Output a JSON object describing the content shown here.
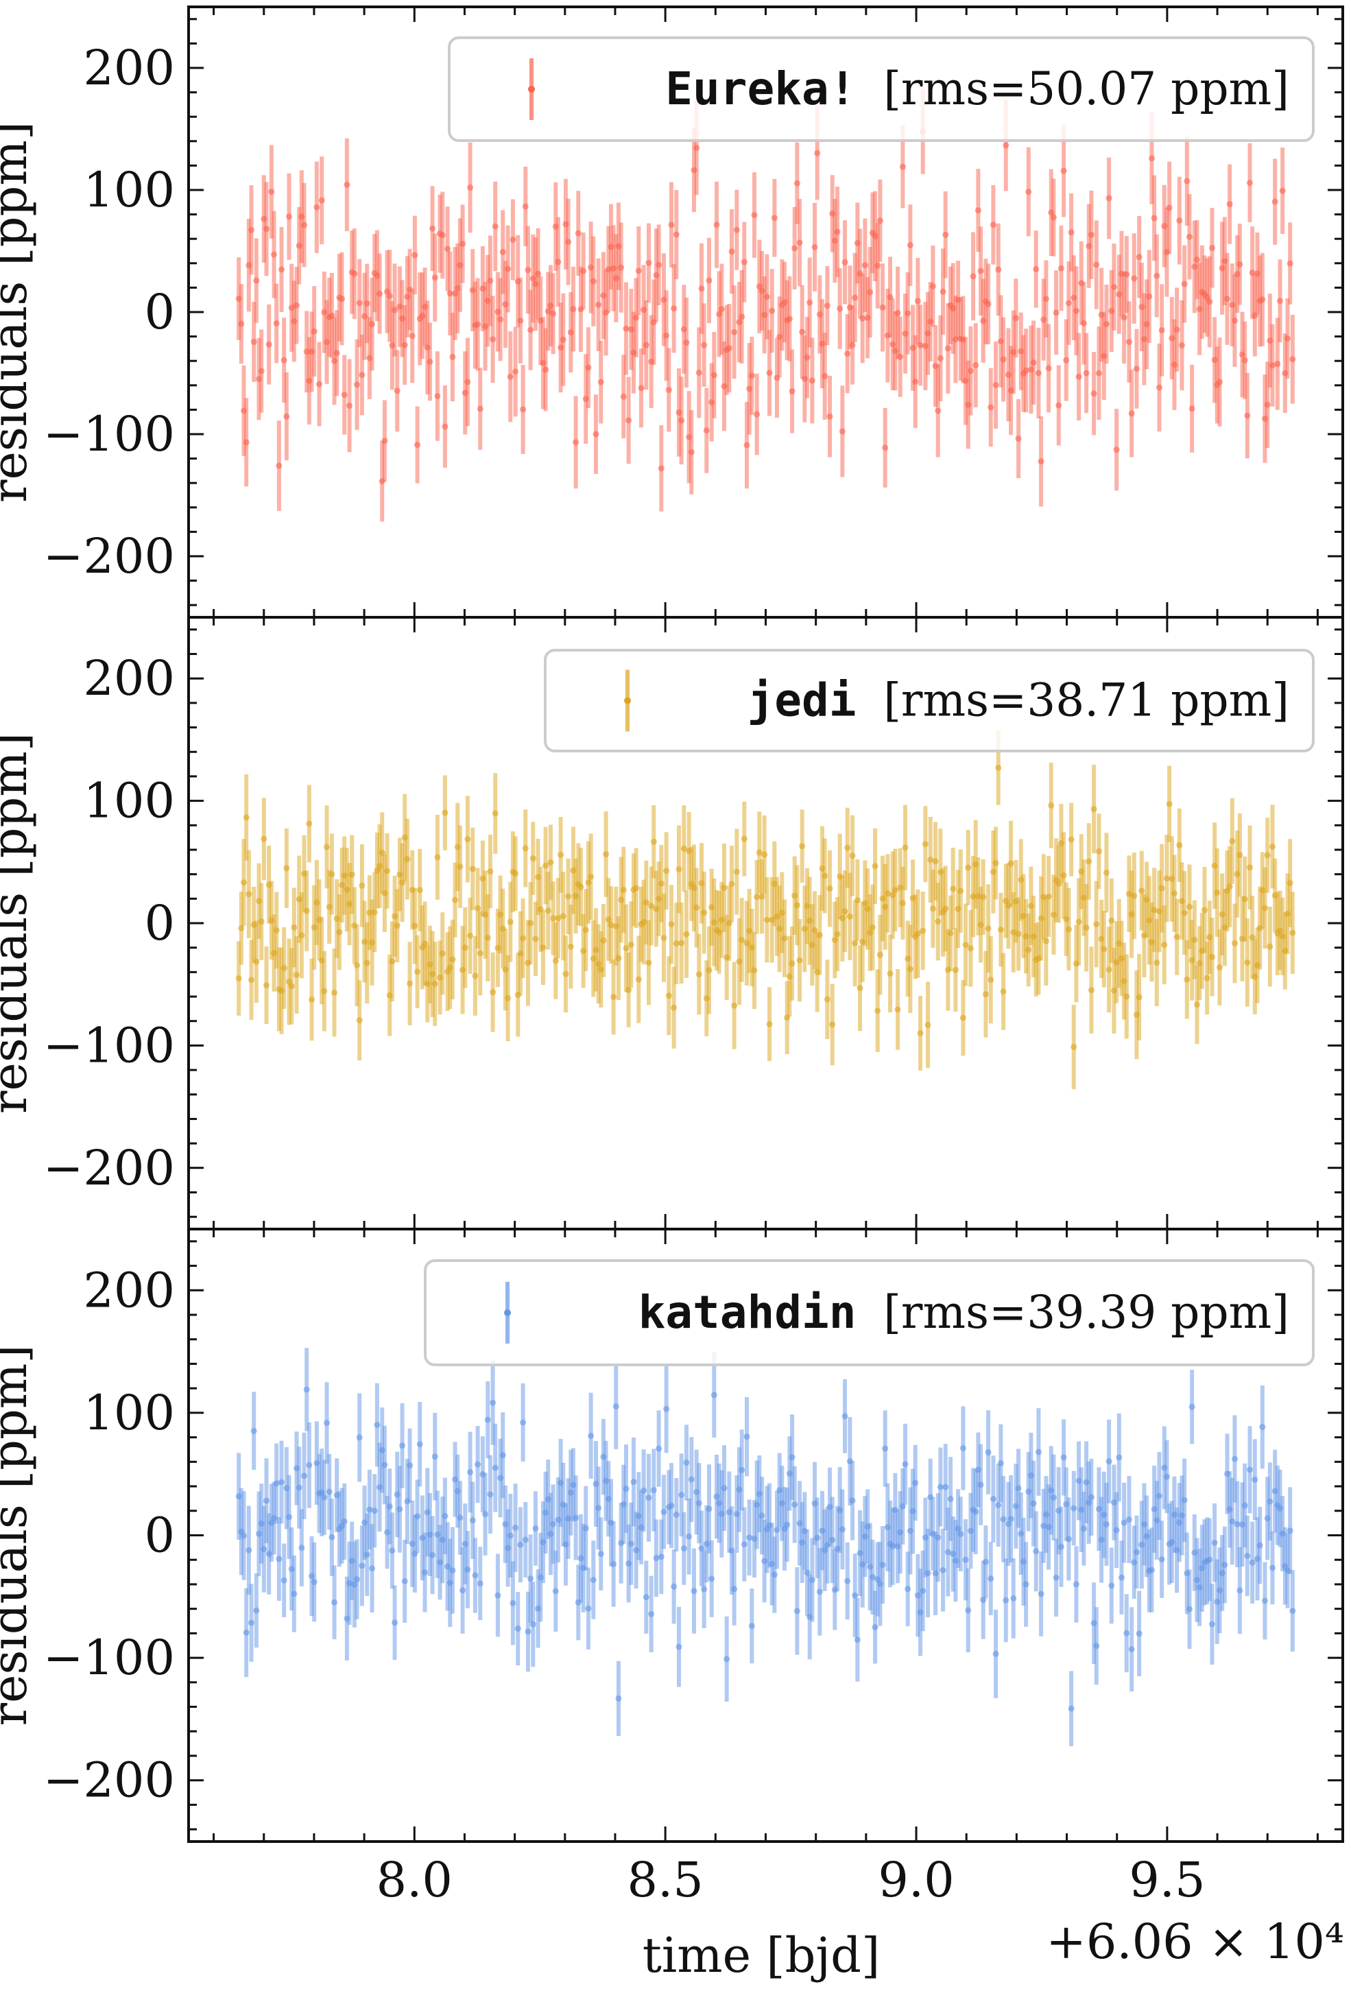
{
  "chart_data": [
    {
      "type": "scatter",
      "panel": "top",
      "series_name": "Eureka!",
      "legend_label": "[rms=50.07 ppm]",
      "rms_ppm": 50.07,
      "color": "#fa6450",
      "ylabel": "residuals [ppm]",
      "ylim": [
        -250,
        250
      ],
      "yticks": [
        -200,
        -100,
        0,
        100,
        200
      ],
      "ytick_labels": [
        "−200",
        "−100",
        "0",
        "100",
        "200"
      ],
      "x_range": [
        60607.65,
        60609.75
      ],
      "n_points": 420,
      "errorbar_halfwidth_ppm": 35,
      "legend_position": "top-right"
    },
    {
      "type": "scatter",
      "panel": "middle",
      "series_name": "jedi",
      "legend_label": "[rms=38.71 ppm]",
      "rms_ppm": 38.71,
      "color": "#dca51e",
      "ylabel": "residuals [ppm]",
      "ylim": [
        -250,
        250
      ],
      "yticks": [
        -200,
        -100,
        0,
        100,
        200
      ],
      "ytick_labels": [
        "−200",
        "−100",
        "0",
        "100",
        "200"
      ],
      "x_range": [
        60607.65,
        60609.75
      ],
      "n_points": 420,
      "errorbar_halfwidth_ppm": 33,
      "legend_position": "top-right"
    },
    {
      "type": "scatter",
      "panel": "bottom",
      "series_name": "katahdin",
      "legend_label": "[rms=39.39 ppm]",
      "rms_ppm": 39.39,
      "color": "#6496e6",
      "ylabel": "residuals [ppm]",
      "ylim": [
        -250,
        250
      ],
      "yticks": [
        -200,
        -100,
        0,
        100,
        200
      ],
      "ytick_labels": [
        "−200",
        "−100",
        "0",
        "100",
        "200"
      ],
      "x_range": [
        60607.65,
        60609.75
      ],
      "n_points": 420,
      "errorbar_halfwidth_ppm": 33,
      "legend_position": "top-right"
    }
  ],
  "x_axis": {
    "xlabel": "time [bjd]",
    "xlim": [
      60607.55,
      60609.85
    ],
    "xticks": [
      60608.0,
      60608.5,
      60609.0,
      60609.5
    ],
    "xtick_labels": [
      "8.0",
      "8.5",
      "9.0",
      "9.5"
    ],
    "offset_text": "+6.06 × 10⁴"
  },
  "colors": {
    "axis": "#111111",
    "legend_border": "#cccccc"
  }
}
